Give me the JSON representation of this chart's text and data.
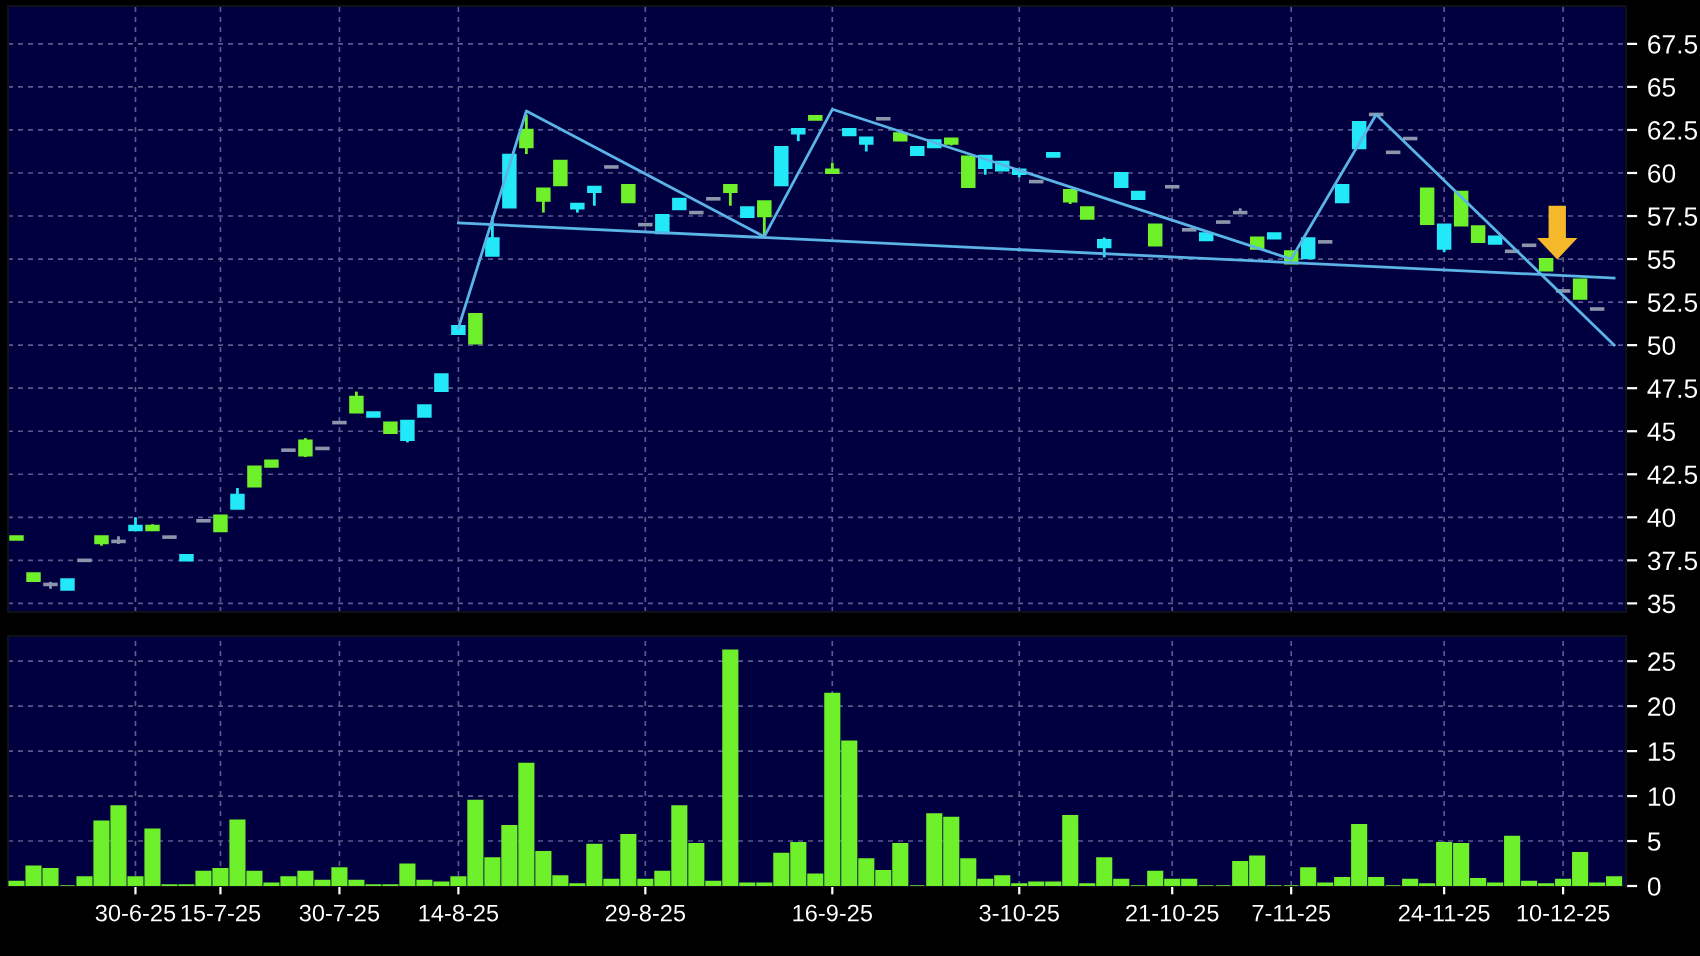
{
  "chart_data": [
    {
      "type": "candlestick",
      "categories": [
        null,
        null,
        null,
        null,
        null,
        null,
        null,
        null,
        null,
        null,
        null,
        null,
        null,
        null,
        null,
        null,
        null,
        null,
        null,
        null,
        null,
        null,
        null,
        null,
        null,
        null,
        null,
        null,
        null,
        null,
        null,
        null,
        null,
        null,
        null,
        null,
        null,
        null,
        null,
        null,
        null,
        null,
        null,
        null,
        null,
        null,
        null,
        null,
        null,
        null,
        null,
        null,
        null,
        null,
        null,
        null,
        null,
        null,
        null,
        null,
        null,
        null,
        null,
        null,
        null,
        null,
        null,
        null,
        null,
        null,
        null,
        null,
        null,
        null,
        null,
        null,
        null,
        null,
        null,
        null,
        null,
        null,
        null,
        null,
        null,
        null,
        null,
        null,
        null,
        null,
        null,
        null,
        null,
        null,
        null
      ],
      "ohlc": [
        [
          38.9,
          38.9,
          38.7,
          38.7
        ],
        [
          36.75,
          36.75,
          36.3,
          36.3
        ],
        [
          36.1,
          36.25,
          35.85,
          36.1
        ],
        [
          35.8,
          36.4,
          35.8,
          36.4
        ],
        [
          37.5,
          37.5,
          37.5,
          37.5
        ],
        [
          38.9,
          38.9,
          38.35,
          38.5
        ],
        [
          38.6,
          38.9,
          38.45,
          38.6
        ],
        [
          39.25,
          40.0,
          39.25,
          39.5
        ],
        [
          39.5,
          39.6,
          39.25,
          39.25
        ],
        [
          38.85,
          38.85,
          38.85,
          38.85
        ],
        [
          37.5,
          37.8,
          37.5,
          37.8
        ],
        [
          39.8,
          39.8,
          39.8,
          39.8
        ],
        [
          40.1,
          40.1,
          39.2,
          39.2
        ],
        [
          40.5,
          41.7,
          40.5,
          41.3
        ],
        [
          42.95,
          42.95,
          41.8,
          41.8
        ],
        [
          43.3,
          43.3,
          42.95,
          42.95
        ],
        [
          43.9,
          43.9,
          43.9,
          43.9
        ],
        [
          44.45,
          44.6,
          43.5,
          43.6
        ],
        [
          44.0,
          44.0,
          44.0,
          44.0
        ],
        [
          45.5,
          45.5,
          45.5,
          45.5
        ],
        [
          47.0,
          47.3,
          46.1,
          46.1
        ],
        [
          45.85,
          46.1,
          45.85,
          46.1
        ],
        [
          45.5,
          45.5,
          44.9,
          44.9
        ],
        [
          44.5,
          45.6,
          44.35,
          45.6
        ],
        [
          45.85,
          46.5,
          45.85,
          46.5
        ],
        [
          47.35,
          48.3,
          47.35,
          48.3
        ],
        [
          50.65,
          51.1,
          50.65,
          51.1
        ],
        [
          51.8,
          51.8,
          50.1,
          50.1
        ],
        [
          55.2,
          57.45,
          55.2,
          56.2
        ],
        [
          58.0,
          61.05,
          58.0,
          61.05
        ],
        [
          62.5,
          63.4,
          61.1,
          61.5
        ],
        [
          59.1,
          59.1,
          57.7,
          58.4
        ],
        [
          60.7,
          60.7,
          59.3,
          59.3
        ],
        [
          57.95,
          58.2,
          57.7,
          58.2
        ],
        [
          58.9,
          59.2,
          58.1,
          59.2
        ],
        [
          60.35,
          60.35,
          60.35,
          60.35
        ],
        [
          59.3,
          59.3,
          58.3,
          58.3
        ],
        [
          57.0,
          57.0,
          57.0,
          57.0
        ],
        [
          56.5,
          57.55,
          56.5,
          57.55
        ],
        [
          57.9,
          58.5,
          57.9,
          58.5
        ],
        [
          57.7,
          57.7,
          57.7,
          57.7
        ],
        [
          58.5,
          58.5,
          58.5,
          58.5
        ],
        [
          59.3,
          59.3,
          58.1,
          58.9
        ],
        [
          57.45,
          58.0,
          57.45,
          58.0
        ],
        [
          58.35,
          58.35,
          56.4,
          57.5
        ],
        [
          59.3,
          61.5,
          59.3,
          61.5
        ],
        [
          62.3,
          62.55,
          61.85,
          62.55
        ],
        [
          63.3,
          63.3,
          63.1,
          63.1
        ],
        [
          60.2,
          60.6,
          60.0,
          60.0
        ],
        [
          62.2,
          62.55,
          62.2,
          62.55
        ],
        [
          61.7,
          62.05,
          61.25,
          62.05
        ],
        [
          63.15,
          63.15,
          63.15,
          63.15
        ],
        [
          62.3,
          62.3,
          61.9,
          61.9
        ],
        [
          61.05,
          61.5,
          61.05,
          61.5
        ],
        [
          61.5,
          61.9,
          61.5,
          61.9
        ],
        [
          62.0,
          62.0,
          61.6,
          61.7
        ],
        [
          60.95,
          60.95,
          59.2,
          59.2
        ],
        [
          60.3,
          61.0,
          59.9,
          61.0
        ],
        [
          60.15,
          60.65,
          60.15,
          60.65
        ],
        [
          59.95,
          60.2,
          59.75,
          60.2
        ],
        [
          59.5,
          59.5,
          59.5,
          59.5
        ],
        [
          60.95,
          61.15,
          60.95,
          61.15
        ],
        [
          59.0,
          59.0,
          58.2,
          58.35
        ],
        [
          58.0,
          58.0,
          57.35,
          57.35
        ],
        [
          55.7,
          56.25,
          55.1,
          56.1
        ],
        [
          59.2,
          60.0,
          59.2,
          60.0
        ],
        [
          58.5,
          58.9,
          58.5,
          58.9
        ],
        [
          57.0,
          57.0,
          55.8,
          55.8
        ],
        [
          59.2,
          59.2,
          59.2,
          59.2
        ],
        [
          56.7,
          56.7,
          56.7,
          56.7
        ],
        [
          56.1,
          56.5,
          56.1,
          56.5
        ],
        [
          57.15,
          57.15,
          57.15,
          57.15
        ],
        [
          57.7,
          57.95,
          57.7,
          57.7
        ],
        [
          56.25,
          56.25,
          55.6,
          55.6
        ],
        [
          56.2,
          56.5,
          56.2,
          56.5
        ],
        [
          55.45,
          55.45,
          54.75,
          54.75
        ],
        [
          55.05,
          56.2,
          55.05,
          56.2
        ],
        [
          56.0,
          56.0,
          56.0,
          56.0
        ],
        [
          58.3,
          59.3,
          58.3,
          59.3
        ],
        [
          61.45,
          62.95,
          61.45,
          62.95
        ],
        [
          63.4,
          63.4,
          63.4,
          63.4
        ],
        [
          61.2,
          61.2,
          61.2,
          61.2
        ],
        [
          62.0,
          62.0,
          62.0,
          62.0
        ],
        [
          59.1,
          59.1,
          57.05,
          57.05
        ],
        [
          55.6,
          57.0,
          55.4,
          57.0
        ],
        [
          58.9,
          58.9,
          56.95,
          56.95
        ],
        [
          56.9,
          56.9,
          56.0,
          56.0
        ],
        [
          55.9,
          56.3,
          55.9,
          56.3
        ],
        [
          55.45,
          55.45,
          55.45,
          55.45
        ],
        [
          55.8,
          55.8,
          55.8,
          55.8
        ],
        [
          55.0,
          55.0,
          54.35,
          54.35
        ],
        [
          53.15,
          53.15,
          53.15,
          53.15
        ],
        [
          53.8,
          53.8,
          52.7,
          52.7
        ],
        [
          52.1,
          52.1,
          52.1,
          52.1
        ],
        null
      ],
      "colors": [
        "#6ef02a",
        "#6ef02a",
        "#8c96aa",
        "#22e8f8",
        "#8c96aa",
        "#6ef02a",
        "#8c96aa",
        "#22e8f8",
        "#6ef02a",
        "#8c96aa",
        "#22e8f8",
        "#8c96aa",
        "#6ef02a",
        "#22e8f8",
        "#6ef02a",
        "#6ef02a",
        "#8c96aa",
        "#6ef02a",
        "#8c96aa",
        "#8c96aa",
        "#6ef02a",
        "#22e8f8",
        "#6ef02a",
        "#22e8f8",
        "#22e8f8",
        "#22e8f8",
        "#22e8f8",
        "#6ef02a",
        "#22e8f8",
        "#22e8f8",
        "#6ef02a",
        "#6ef02a",
        "#6ef02a",
        "#22e8f8",
        "#22e8f8",
        "#8c96aa",
        "#6ef02a",
        "#8c96aa",
        "#22e8f8",
        "#22e8f8",
        "#8c96aa",
        "#8c96aa",
        "#6ef02a",
        "#22e8f8",
        "#6ef02a",
        "#22e8f8",
        "#22e8f8",
        "#6ef02a",
        "#6ef02a",
        "#22e8f8",
        "#22e8f8",
        "#8c96aa",
        "#6ef02a",
        "#22e8f8",
        "#22e8f8",
        "#6ef02a",
        "#6ef02a",
        "#22e8f8",
        "#22e8f8",
        "#22e8f8",
        "#8c96aa",
        "#22e8f8",
        "#6ef02a",
        "#6ef02a",
        "#22e8f8",
        "#22e8f8",
        "#22e8f8",
        "#6ef02a",
        "#8c96aa",
        "#8c96aa",
        "#22e8f8",
        "#8c96aa",
        "#8c96aa",
        "#6ef02a",
        "#22e8f8",
        "#6ef02a",
        "#22e8f8",
        "#8c96aa",
        "#22e8f8",
        "#22e8f8",
        "#8c96aa",
        "#8c96aa",
        "#8c96aa",
        "#6ef02a",
        "#22e8f8",
        "#6ef02a",
        "#6ef02a",
        "#22e8f8",
        "#8c96aa",
        "#8c96aa",
        "#6ef02a",
        "#8c96aa",
        "#6ef02a",
        "#8c96aa",
        null
      ],
      "series": [
        {
          "type": "line",
          "color": "#5ab4e6",
          "values": [
            null,
            null,
            null,
            null,
            null,
            null,
            null,
            null,
            null,
            null,
            null,
            null,
            null,
            null,
            null,
            null,
            null,
            null,
            null,
            null,
            null,
            null,
            null,
            null,
            null,
            null,
            57.1,
            null,
            null,
            null,
            null,
            null,
            null,
            null,
            null,
            null,
            null,
            null,
            null,
            null,
            null,
            null,
            null,
            null,
            null,
            null,
            null,
            null,
            null,
            null,
            null,
            null,
            null,
            null,
            null,
            null,
            null,
            null,
            null,
            null,
            null,
            null,
            null,
            null,
            null,
            null,
            null,
            null,
            null,
            null,
            null,
            null,
            null,
            null,
            null,
            null,
            null,
            null,
            null,
            null,
            null,
            null,
            null,
            null,
            null,
            null,
            null,
            null,
            null,
            null,
            null,
            null,
            null,
            null,
            53.9
          ]
        },
        {
          "type": "line",
          "color": "#5ab4e6",
          "values": [
            null,
            null,
            null,
            null,
            null,
            null,
            null,
            null,
            null,
            null,
            null,
            null,
            null,
            null,
            null,
            null,
            null,
            null,
            null,
            null,
            null,
            null,
            null,
            null,
            null,
            null,
            51.0,
            null,
            null,
            null,
            63.6,
            null,
            null,
            null,
            null,
            null,
            null,
            null,
            null,
            null,
            null,
            null,
            null,
            null,
            56.3,
            null,
            null,
            null,
            63.7,
            null,
            null,
            null,
            null,
            null,
            null,
            null,
            null,
            null,
            null,
            null,
            null,
            null,
            null,
            null,
            null,
            null,
            null,
            null,
            null,
            null,
            null,
            null,
            null,
            null,
            null,
            55.0,
            null,
            null,
            null,
            null,
            63.4,
            null,
            null,
            null,
            null,
            null,
            null,
            null,
            null,
            null,
            null,
            null,
            null,
            null,
            50.0
          ]
        }
      ],
      "ylim": [
        34.5,
        69.7
      ],
      "yticks": [
        35,
        37.5,
        40,
        42.5,
        45,
        47.5,
        50,
        52.5,
        55,
        57.5,
        60,
        62.5,
        65,
        67.5
      ],
      "grid": true,
      "tick_labels": "y"
    },
    {
      "type": "bar",
      "categories": [
        null,
        null,
        null,
        null,
        null,
        null,
        null,
        "30-6-25",
        null,
        null,
        null,
        null,
        "15-7-25",
        null,
        null,
        null,
        null,
        null,
        null,
        "30-7-25",
        null,
        null,
        null,
        null,
        null,
        null,
        "14-8-25",
        null,
        null,
        null,
        null,
        null,
        null,
        null,
        null,
        null,
        null,
        "29-8-25",
        null,
        null,
        null,
        null,
        null,
        null,
        null,
        null,
        null,
        null,
        "16-9-25",
        null,
        null,
        null,
        null,
        null,
        null,
        null,
        null,
        null,
        null,
        "3-10-25",
        null,
        null,
        null,
        null,
        null,
        null,
        null,
        null,
        "21-10-25",
        null,
        null,
        null,
        null,
        null,
        null,
        "7-11-25",
        null,
        null,
        null,
        null,
        null,
        null,
        null,
        null,
        "24-11-25",
        null,
        null,
        null,
        null,
        null,
        null,
        "10-12-25",
        null,
        null,
        null
      ],
      "values": [
        0.5,
        2.2,
        1.9,
        0,
        1.0,
        7.2,
        8.9,
        1.0,
        6.3,
        0.1,
        0.1,
        1.6,
        1.9,
        7.3,
        1.6,
        0.3,
        1.0,
        1.6,
        0.6,
        2.0,
        0.6,
        0.1,
        0.1,
        2.4,
        0.6,
        0.4,
        1.0,
        9.5,
        3.1,
        6.7,
        13.6,
        3.8,
        1.1,
        0.2,
        4.6,
        0.7,
        5.7,
        0.7,
        1.6,
        8.9,
        4.7,
        0.5,
        26.2,
        0.3,
        0.3,
        3.6,
        4.8,
        1.3,
        21.4,
        16.1,
        3.0,
        1.7,
        4.7,
        0,
        8.0,
        7.6,
        3.0,
        0.7,
        1.1,
        0.2,
        0.4,
        0.4,
        7.8,
        0.2,
        3.1,
        0.7,
        0,
        1.6,
        0.7,
        0.7,
        0,
        0,
        2.7,
        3.3,
        0,
        0,
        2.0,
        0.3,
        0.9,
        6.8,
        0.9,
        0,
        0.7,
        0.2,
        4.8,
        4.7,
        0.8,
        0.3,
        5.5,
        0.5,
        0.2,
        0.7,
        3.7,
        0.3,
        1.0
      ],
      "color": "#6ef02a",
      "ylim": [
        0,
        27.8
      ],
      "yticks": [
        0,
        5,
        10,
        15,
        20,
        25
      ],
      "grid": true
    }
  ]
}
